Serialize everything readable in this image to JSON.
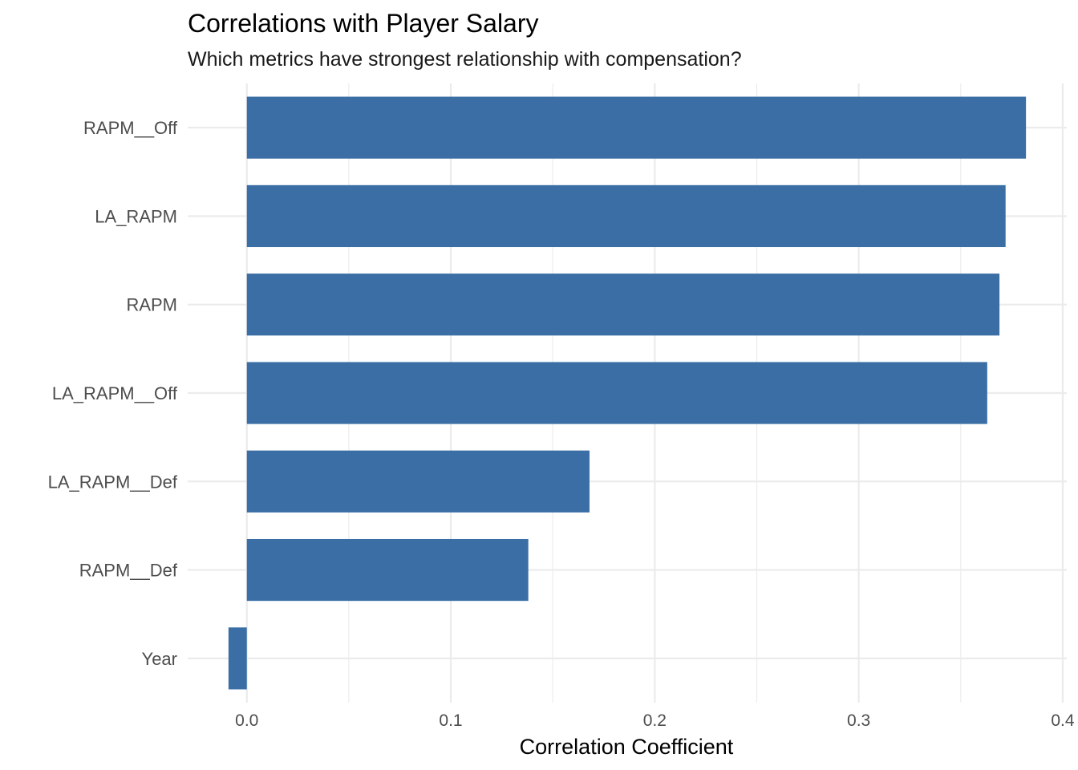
{
  "chart_data": {
    "type": "bar",
    "orientation": "horizontal",
    "title": "Correlations with Player Salary",
    "subtitle": "Which metrics have strongest relationship with compensation?",
    "xlabel": "Correlation Coefficient",
    "ylabel": "",
    "categories": [
      "RAPM__Off",
      "LA_RAPM",
      "RAPM",
      "LA_RAPM__Off",
      "LA_RAPM__Def",
      "RAPM__Def",
      "Year"
    ],
    "values": [
      0.382,
      0.372,
      0.369,
      0.363,
      0.168,
      0.138,
      -0.009
    ],
    "xlim": [
      -0.029,
      0.402
    ],
    "x_ticks": [
      0.0,
      0.1,
      0.2,
      0.3,
      0.4
    ],
    "x_tick_labels": [
      "0.0",
      "0.1",
      "0.2",
      "0.3",
      "0.4"
    ],
    "grid": true,
    "legend": "none",
    "bar_color": "#3a6ea5",
    "grid_color": "#ebebeb"
  }
}
